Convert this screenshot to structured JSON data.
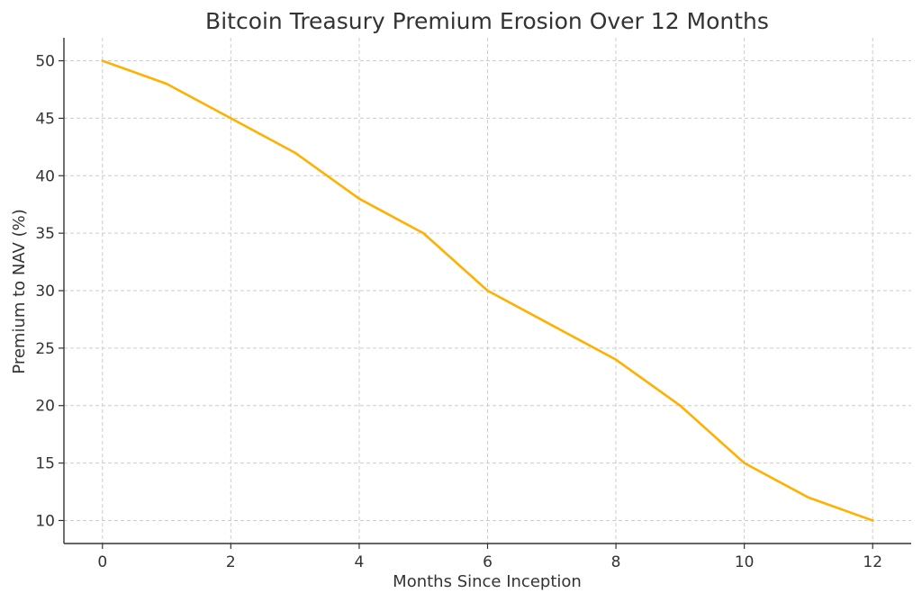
{
  "chart_data": {
    "type": "line",
    "title": "Bitcoin Treasury Premium Erosion Over 12 Months",
    "xlabel": "Months Since Inception",
    "ylabel": "Premium to NAV (%)",
    "x": [
      0,
      1,
      2,
      3,
      4,
      5,
      6,
      7,
      8,
      9,
      10,
      11,
      12
    ],
    "series": [
      {
        "values": [
          50,
          48,
          45,
          42,
          38,
          35,
          30,
          27,
          24,
          20,
          15,
          12,
          10
        ],
        "color": "#FFB000"
      }
    ],
    "xlim": [
      -0.6,
      12.6
    ],
    "ylim": [
      8,
      52
    ],
    "xticks": [
      0,
      2,
      4,
      6,
      8,
      10,
      12
    ],
    "yticks": [
      10,
      15,
      20,
      25,
      30,
      35,
      40,
      45,
      50
    ],
    "grid": true,
    "legend": "none"
  }
}
